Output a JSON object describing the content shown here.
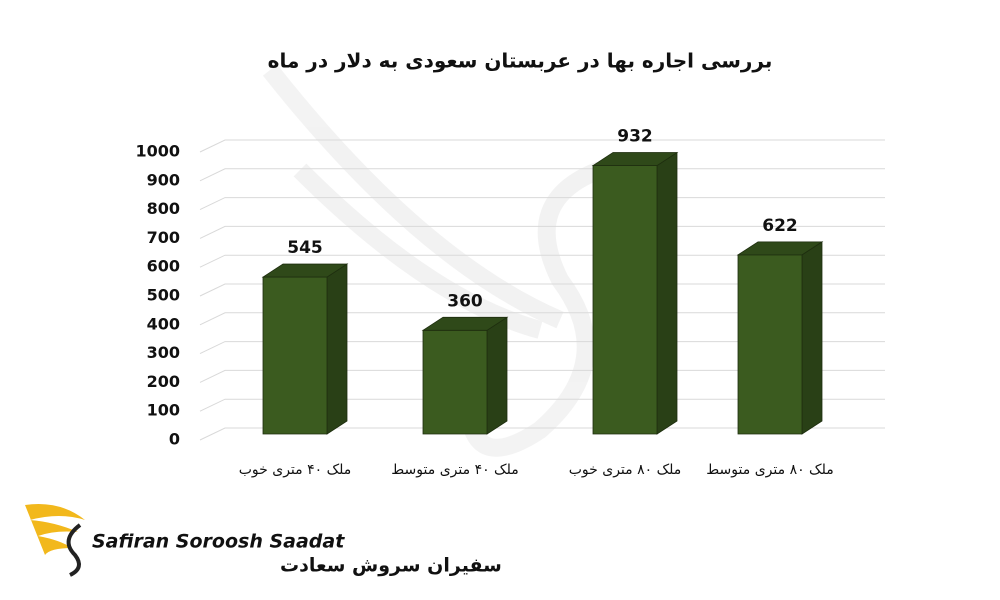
{
  "chart_data": {
    "type": "bar3d",
    "title": "بررسی اجاره بها در عربستان سعودی به دلار در ماه",
    "categories": [
      "ملک ۴۰ متری خوب",
      "ملک ۴۰ متری متوسط",
      "ملک ۸۰ متری خوب",
      "ملک ۸۰ متری متوسط"
    ],
    "values": [
      545,
      360,
      932,
      622
    ],
    "color": "#3b5b1f",
    "ylim": [
      0,
      1000
    ],
    "yticks": [
      0,
      100,
      200,
      300,
      400,
      500,
      600,
      700,
      800,
      900,
      1000
    ],
    "grid": true
  },
  "logo": {
    "name_en": "Safiran Soroosh Saadat",
    "name_fa": "سفیران سروش سعادت"
  }
}
